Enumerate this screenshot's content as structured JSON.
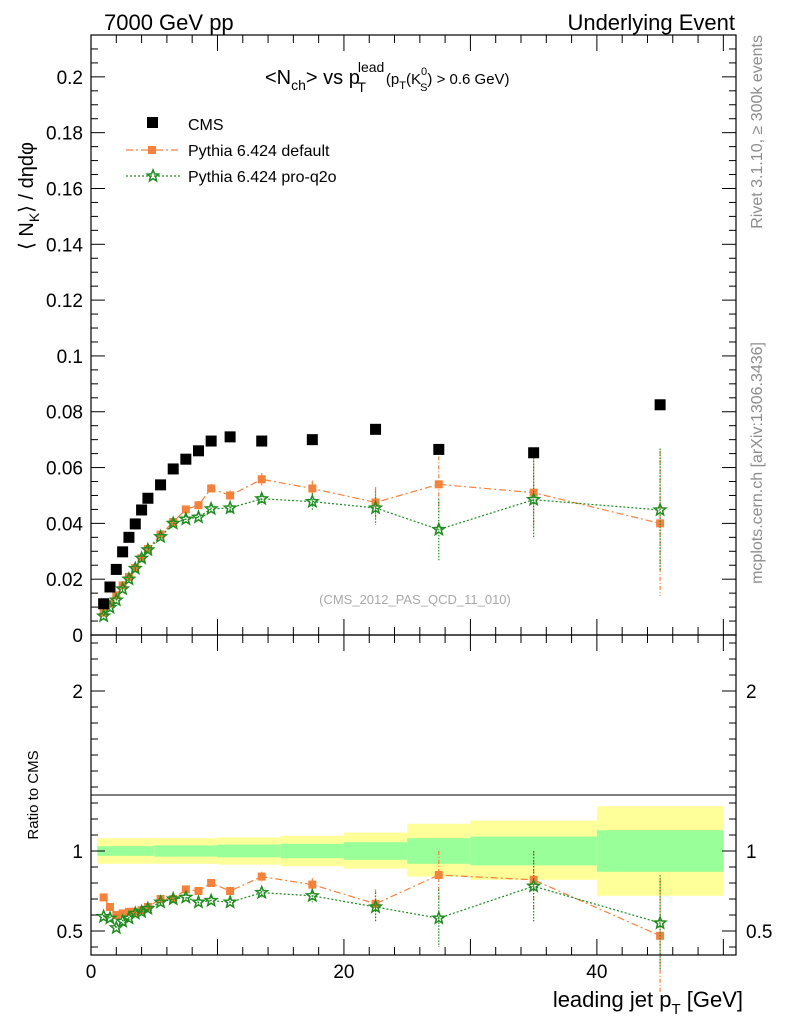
{
  "header": {
    "left": "7000 GeV pp",
    "right": "Underlying Event"
  },
  "side_labels": {
    "rivet": "Rivet 3.1.10, ≥ 300k events",
    "mcplots": "mcplots.cern.ch [arXiv:1306.3436]"
  },
  "plot_title": {
    "lead": "<N",
    "lead_sub": "ch",
    "mid": "> vs p",
    "mid_sup": "lead",
    "mid_sub": "T",
    "cut_open": "(p",
    "cut_sub": "T",
    "cut_k": "(K",
    "cut_k_sup": "0",
    "cut_k_sub": "S",
    "cut_close": ") > 0.6 GeV)"
  },
  "ylabel_main": {
    "open": "⟨ N",
    "sub": "K",
    "close": "⟩ / dηdφ"
  },
  "ylabel_ratio": "Ratio to CMS",
  "xlabel": {
    "main": "leading jet p",
    "sub": "T",
    "unit": " [GeV]"
  },
  "watermark": "(CMS_2012_PAS_QCD_11_010)",
  "colors": {
    "cms": "#000000",
    "default": "#f5823c",
    "pro_q2o": "#1e8c1e",
    "band_yellow": "#ffff99",
    "band_green": "#99ff99"
  },
  "chart_data": {
    "type": "scatter",
    "x_range": [
      0,
      51
    ],
    "main": {
      "y_range": [
        0,
        0.215
      ],
      "y_ticks": [
        {
          "v": 0,
          "label": "0"
        },
        {
          "v": 0.02,
          "label": "0.02"
        },
        {
          "v": 0.04,
          "label": "0.04"
        },
        {
          "v": 0.06,
          "label": "0.06"
        },
        {
          "v": 0.08,
          "label": "0.08"
        },
        {
          "v": 0.1,
          "label": "0.1"
        },
        {
          "v": 0.12,
          "label": "0.12"
        },
        {
          "v": 0.14,
          "label": "0.14"
        },
        {
          "v": 0.16,
          "label": "0.16"
        },
        {
          "v": 0.18,
          "label": "0.18"
        },
        {
          "v": 0.2,
          "label": "0.2"
        }
      ]
    },
    "ratio": {
      "y_range": [
        0.35,
        2.35
      ],
      "y_ticks": [
        {
          "v": 0.5,
          "label": "0.5"
        },
        {
          "v": 1,
          "label": "1"
        },
        {
          "v": 2,
          "label": "2"
        }
      ]
    },
    "x_ticks": [
      {
        "v": 0,
        "label": "0"
      },
      {
        "v": 20,
        "label": "20"
      },
      {
        "v": 40,
        "label": "40"
      }
    ],
    "legend": [
      "CMS",
      "Pythia 6.424 default",
      "Pythia 6.424 pro-q2o"
    ],
    "cms": {
      "x": [
        1.0,
        1.5,
        2.0,
        2.5,
        3.0,
        3.5,
        4.0,
        4.5,
        5.5,
        6.5,
        7.5,
        8.5,
        9.5,
        11.0,
        13.5,
        17.5,
        22.5,
        27.5,
        35.0,
        45.0
      ],
      "y": [
        0.0112,
        0.0172,
        0.0235,
        0.0298,
        0.035,
        0.0398,
        0.0448,
        0.049,
        0.0538,
        0.0595,
        0.063,
        0.066,
        0.0695,
        0.071,
        0.0695,
        0.07,
        0.0737,
        0.0665,
        0.0653,
        0.0825
      ],
      "band_edges": [
        0.5,
        5,
        10,
        15,
        20,
        25,
        30,
        40,
        50
      ],
      "band_yellow_lo": [
        0.92,
        0.92,
        0.915,
        0.905,
        0.89,
        0.84,
        0.82,
        0.72
      ],
      "band_yellow_hi": [
        1.08,
        1.08,
        1.085,
        1.095,
        1.115,
        1.17,
        1.19,
        1.28
      ],
      "band_green_lo": [
        0.97,
        0.965,
        0.96,
        0.955,
        0.945,
        0.92,
        0.91,
        0.87
      ],
      "band_green_hi": [
        1.03,
        1.035,
        1.04,
        1.045,
        1.055,
        1.08,
        1.09,
        1.13
      ]
    },
    "series": [
      {
        "name": "Pythia 6.424 default",
        "style": "dashdot-square",
        "x": [
          1.0,
          1.5,
          2.0,
          2.5,
          3.0,
          3.5,
          4.0,
          4.5,
          5.5,
          6.5,
          7.5,
          8.5,
          9.5,
          11.0,
          13.5,
          17.5,
          22.5,
          27.5,
          35.0,
          45.0
        ],
        "y": [
          0.008,
          0.0112,
          0.0142,
          0.0178,
          0.0208,
          0.024,
          0.0275,
          0.0308,
          0.036,
          0.0405,
          0.045,
          0.0465,
          0.0525,
          0.05,
          0.0558,
          0.0525,
          0.0475,
          0.054,
          0.051,
          0.04
        ],
        "err": [
          0.0006,
          0.0006,
          0.0006,
          0.0007,
          0.0007,
          0.0008,
          0.0008,
          0.0009,
          0.001,
          0.0012,
          0.0013,
          0.0015,
          0.0016,
          0.0018,
          0.0022,
          0.0028,
          0.0055,
          0.01,
          0.013,
          0.026
        ],
        "ratio": [
          0.71,
          0.65,
          0.6,
          0.61,
          0.62,
          0.62,
          0.63,
          0.65,
          0.7,
          0.7,
          0.76,
          0.75,
          0.8,
          0.75,
          0.84,
          0.79,
          0.67,
          0.85,
          0.82,
          0.47
        ],
        "ratio_err": [
          0.01,
          0.01,
          0.01,
          0.01,
          0.01,
          0.01,
          0.015,
          0.015,
          0.015,
          0.02,
          0.02,
          0.02,
          0.025,
          0.025,
          0.03,
          0.04,
          0.09,
          0.15,
          0.18,
          0.35
        ]
      },
      {
        "name": "Pythia 6.424 pro-q2o",
        "style": "dotted-star",
        "x": [
          1.0,
          1.5,
          2.0,
          2.5,
          3.0,
          3.5,
          4.0,
          4.5,
          5.5,
          6.5,
          7.5,
          8.5,
          9.5,
          11.0,
          13.5,
          17.5,
          22.5,
          27.5,
          35.0,
          45.0
        ],
        "y": [
          0.0068,
          0.0098,
          0.0125,
          0.0165,
          0.02,
          0.0238,
          0.0275,
          0.0305,
          0.0352,
          0.04,
          0.0415,
          0.0422,
          0.0452,
          0.0455,
          0.0488,
          0.0478,
          0.0455,
          0.0378,
          0.0485,
          0.0448
        ],
        "err": [
          0.0006,
          0.0006,
          0.0006,
          0.0007,
          0.0007,
          0.0008,
          0.0008,
          0.0009,
          0.001,
          0.0012,
          0.0013,
          0.0015,
          0.0016,
          0.0018,
          0.0022,
          0.003,
          0.006,
          0.011,
          0.014,
          0.022
        ],
        "ratio": [
          0.59,
          0.58,
          0.52,
          0.56,
          0.58,
          0.61,
          0.62,
          0.64,
          0.68,
          0.7,
          0.71,
          0.68,
          0.69,
          0.68,
          0.74,
          0.72,
          0.65,
          0.58,
          0.78,
          0.55
        ],
        "ratio_err": [
          0.01,
          0.01,
          0.01,
          0.01,
          0.01,
          0.01,
          0.015,
          0.015,
          0.015,
          0.02,
          0.02,
          0.02,
          0.025,
          0.025,
          0.03,
          0.04,
          0.09,
          0.18,
          0.22,
          0.3
        ]
      }
    ]
  }
}
